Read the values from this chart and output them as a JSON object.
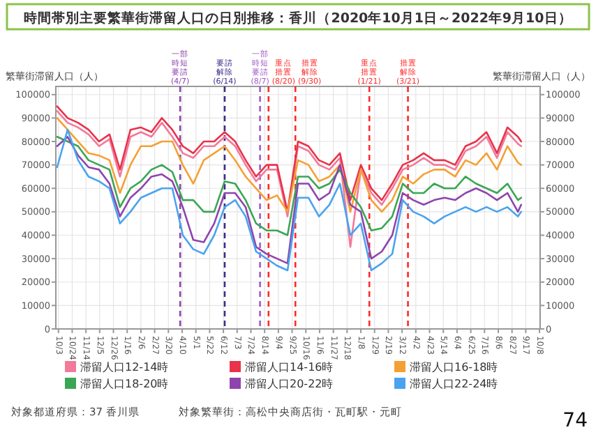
{
  "chart_data": {
    "type": "line",
    "title": "時間帯別主要繁華街滞留人口の日別推移：香川（2020年10月1日～2022年9月10日）",
    "ylabel": "繁華街滞留人口（人）",
    "y2label": "繁華街滞留人口（人）",
    "x": [
      "2020-10-01",
      "2020-10-17",
      "2020-11-02",
      "2020-11-18",
      "2020-12-04",
      "2020-12-20",
      "2021-01-05",
      "2021-01-21",
      "2021-02-06",
      "2021-02-22",
      "2021-03-10",
      "2021-03-26",
      "2021-04-11",
      "2021-04-27",
      "2021-05-13",
      "2021-05-29",
      "2021-06-14",
      "2021-06-30",
      "2021-07-16",
      "2021-08-01",
      "2021-08-17",
      "2021-09-02",
      "2021-09-18",
      "2021-10-04",
      "2021-10-20",
      "2021-11-05",
      "2021-11-21",
      "2021-12-07",
      "2021-12-23",
      "2022-01-08",
      "2022-01-24",
      "2022-02-09",
      "2022-02-25",
      "2022-03-13",
      "2022-03-29",
      "2022-04-14",
      "2022-04-30",
      "2022-05-16",
      "2022-06-01",
      "2022-06-17",
      "2022-07-03",
      "2022-07-19",
      "2022-08-04",
      "2022-08-20",
      "2022-09-05",
      "2022-09-10"
    ],
    "series": [
      {
        "name": "滞留人口12-14時",
        "color": "#f27a9b",
        "values": [
          93000,
          88000,
          86000,
          83000,
          78000,
          81000,
          65000,
          82000,
          84000,
          82000,
          88000,
          82000,
          75000,
          73000,
          78000,
          78000,
          82000,
          78000,
          70000,
          63000,
          68000,
          68000,
          48000,
          78000,
          76000,
          70000,
          68000,
          73000,
          35000,
          68000,
          58000,
          53000,
          60000,
          68000,
          70000,
          73000,
          70000,
          70000,
          68000,
          76000,
          78000,
          82000,
          73000,
          84000,
          79000,
          78000
        ]
      },
      {
        "name": "滞留人口14-16時",
        "color": "#e8334a",
        "values": [
          95000,
          90000,
          88000,
          85000,
          80000,
          83000,
          68000,
          85000,
          86000,
          84000,
          90000,
          85000,
          78000,
          75000,
          80000,
          80000,
          84000,
          80000,
          72000,
          65000,
          70000,
          70000,
          50000,
          80000,
          78000,
          72000,
          70000,
          75000,
          55000,
          70000,
          60000,
          55000,
          62000,
          70000,
          72000,
          75000,
          72000,
          72000,
          70000,
          78000,
          80000,
          84000,
          75000,
          86000,
          82000,
          80000
        ]
      },
      {
        "name": "滞留人口16-18時",
        "color": "#f5a033",
        "values": [
          90000,
          85000,
          80000,
          75000,
          74000,
          72000,
          58000,
          70000,
          78000,
          78000,
          80000,
          80000,
          70000,
          62000,
          72000,
          75000,
          78000,
          72000,
          65000,
          60000,
          55000,
          57000,
          50000,
          72000,
          70000,
          63000,
          65000,
          70000,
          50000,
          68000,
          55000,
          50000,
          55000,
          65000,
          62000,
          66000,
          68000,
          68000,
          65000,
          72000,
          70000,
          75000,
          68000,
          78000,
          71000,
          70000
        ]
      },
      {
        "name": "滞留人口18-20時",
        "color": "#3aa655",
        "values": [
          82000,
          80000,
          78000,
          72000,
          70000,
          68000,
          52000,
          60000,
          63000,
          68000,
          70000,
          67000,
          55000,
          55000,
          50000,
          50000,
          63000,
          62000,
          55000,
          45000,
          42000,
          42000,
          40000,
          65000,
          65000,
          60000,
          62000,
          68000,
          58000,
          52000,
          42000,
          43000,
          48000,
          62000,
          58000,
          58000,
          62000,
          60000,
          60000,
          65000,
          62000,
          60000,
          58000,
          62000,
          55000,
          56000
        ]
      },
      {
        "name": "滞留人口20-22時",
        "color": "#8e44ad",
        "values": [
          78000,
          82000,
          74000,
          69000,
          68000,
          62000,
          48000,
          56000,
          60000,
          65000,
          66000,
          63000,
          52000,
          38000,
          37000,
          45000,
          58000,
          58000,
          52000,
          35000,
          32000,
          30000,
          28000,
          62000,
          62000,
          55000,
          58000,
          70000,
          53000,
          50000,
          30000,
          33000,
          40000,
          58000,
          55000,
          53000,
          55000,
          56000,
          55000,
          58000,
          60000,
          58000,
          55000,
          58000,
          50000,
          53000
        ]
      },
      {
        "name": "滞留人口22-24時",
        "color": "#4aa3ef",
        "values": [
          69000,
          85000,
          72000,
          65000,
          63000,
          60000,
          45000,
          50000,
          56000,
          58000,
          60000,
          60000,
          40000,
          34000,
          32000,
          40000,
          52000,
          55000,
          48000,
          33000,
          30000,
          27000,
          25000,
          56000,
          56000,
          48000,
          53000,
          62000,
          40000,
          45000,
          25000,
          28000,
          32000,
          55000,
          50000,
          48000,
          45000,
          48000,
          50000,
          52000,
          50000,
          52000,
          50000,
          52000,
          48000,
          50000
        ]
      }
    ],
    "xlim": [
      "2020-09-29",
      "2022-10-09"
    ],
    "xticks": [
      {
        "value": "2020-10-03",
        "label": "10/3"
      },
      {
        "value": "2020-10-24",
        "label": "10/24"
      },
      {
        "value": "2020-11-14",
        "label": "11/14"
      },
      {
        "value": "2020-12-05",
        "label": "12/5"
      },
      {
        "value": "2020-12-26",
        "label": "12/26"
      },
      {
        "value": "2021-01-16",
        "label": "1/16"
      },
      {
        "value": "2021-02-06",
        "label": "2/6"
      },
      {
        "value": "2021-02-27",
        "label": "2/27"
      },
      {
        "value": "2021-03-20",
        "label": "3/20"
      },
      {
        "value": "2021-04-10",
        "label": "4/10"
      },
      {
        "value": "2021-05-01",
        "label": "5/1"
      },
      {
        "value": "2021-05-22",
        "label": "5/22"
      },
      {
        "value": "2021-06-12",
        "label": "6/12"
      },
      {
        "value": "2021-07-03",
        "label": "7/3"
      },
      {
        "value": "2021-07-24",
        "label": "7/24"
      },
      {
        "value": "2021-08-14",
        "label": "8/14"
      },
      {
        "value": "2021-09-04",
        "label": "9/4"
      },
      {
        "value": "2021-09-25",
        "label": "9/25"
      },
      {
        "value": "2021-10-16",
        "label": "10/16"
      },
      {
        "value": "2021-11-06",
        "label": "11/6"
      },
      {
        "value": "2021-11-27",
        "label": "11/27"
      },
      {
        "value": "2021-12-18",
        "label": "12/18"
      },
      {
        "value": "2022-01-08",
        "label": "1/8"
      },
      {
        "value": "2022-01-29",
        "label": "1/29"
      },
      {
        "value": "2022-02-19",
        "label": "2/19"
      },
      {
        "value": "2022-03-12",
        "label": "3/12"
      },
      {
        "value": "2022-04-02",
        "label": "4/2"
      },
      {
        "value": "2022-04-23",
        "label": "4/23"
      },
      {
        "value": "2022-05-14",
        "label": "5/14"
      },
      {
        "value": "2022-06-04",
        "label": "6/4"
      },
      {
        "value": "2022-06-25",
        "label": "6/25"
      },
      {
        "value": "2022-07-16",
        "label": "7/16"
      },
      {
        "value": "2022-08-06",
        "label": "8/6"
      },
      {
        "value": "2022-08-27",
        "label": "8/27"
      },
      {
        "value": "2022-09-17",
        "label": "9/17"
      },
      {
        "value": "2022-10-08",
        "label": "10/8"
      }
    ],
    "ylim": [
      0,
      103500
    ],
    "yticks": [
      0,
      10000,
      20000,
      30000,
      40000,
      50000,
      60000,
      70000,
      80000,
      90000,
      100000
    ],
    "y2lim": [
      0,
      103500
    ],
    "y2ticks": [
      0,
      10000,
      20000,
      30000,
      40000,
      50000,
      60000,
      70000,
      80000,
      90000,
      100000
    ],
    "ref_lines": [
      {
        "axis": "x",
        "value": "2021-04-07",
        "label": "一部時短要請(4/7)",
        "color": "#8e44ad",
        "line_style": "dashed"
      },
      {
        "axis": "x",
        "value": "2021-06-14",
        "label": "要請解除(6/14)",
        "color": "#3b2a8a",
        "line_style": "dashed"
      },
      {
        "axis": "x",
        "value": "2021-08-07",
        "label": "一部時短要請(8/7)",
        "color": "#a05cc8",
        "line_style": "dashed"
      },
      {
        "axis": "x",
        "value": "2021-08-20",
        "label": "重点措置(8/20)",
        "color": "#ff2a2a",
        "line_style": "dashed"
      },
      {
        "axis": "x",
        "value": "2021-09-30",
        "label": "措置解除(9/30)",
        "color": "#ff2a2a",
        "line_style": "dashed"
      },
      {
        "axis": "x",
        "value": "2022-01-21",
        "label": "重点措置(1/21)",
        "color": "#ff2a2a",
        "line_style": "dashed"
      },
      {
        "axis": "x",
        "value": "2022-03-21",
        "label": "措置解除(3/21)",
        "color": "#ff2a2a",
        "line_style": "dashed"
      }
    ],
    "grid": true,
    "legend": "bottom",
    "line_style": "solid",
    "marker": "none",
    "annotations": [
      "対象都道府県：37 香川県",
      "対象繁華街：高松中央商店街・瓦町駅・元町",
      "74"
    ]
  }
}
